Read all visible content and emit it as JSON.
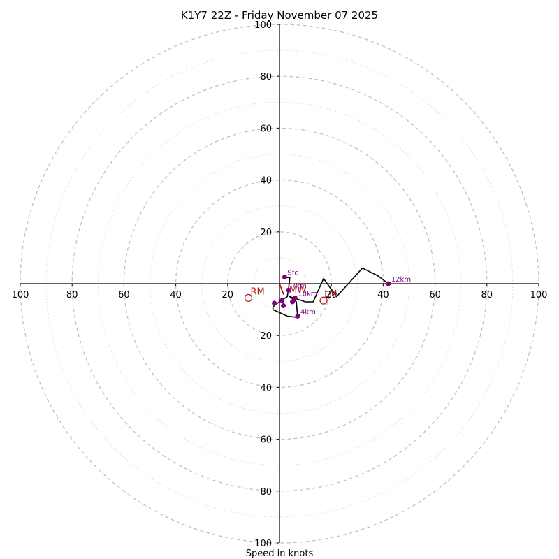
{
  "chart_data": {
    "type": "hodograph",
    "title": "K1Y7 22Z - Friday November 07 2025",
    "xlabel": "Speed in knots",
    "range": [
      -100,
      100
    ],
    "ring_major_step": 20,
    "ring_minor_step": 10,
    "x_ticks": [
      -100,
      -80,
      -60,
      -40,
      -20,
      20,
      40,
      60,
      80,
      100
    ],
    "x_tick_labels": [
      "100",
      "80",
      "60",
      "40",
      "20",
      "20",
      "40",
      "60",
      "80",
      "100"
    ],
    "y_ticks": [
      100,
      80,
      60,
      40,
      20,
      -20,
      -40,
      -60,
      -80,
      -100
    ],
    "y_tick_labels": [
      "100",
      "80",
      "60",
      "40",
      "20",
      "20",
      "40",
      "60",
      "80",
      "100"
    ],
    "hodograph_uv": [
      [
        2,
        2.5
      ],
      [
        4,
        2.3
      ],
      [
        3.5,
        -2
      ],
      [
        3,
        -5
      ],
      [
        0,
        -7
      ],
      [
        -1.5,
        -8
      ],
      [
        -2.5,
        -9
      ],
      [
        -2.5,
        -10
      ],
      [
        3,
        -12.5
      ],
      [
        7,
        -13
      ],
      [
        6.5,
        -7
      ],
      [
        4,
        -5
      ],
      [
        7,
        -6
      ],
      [
        10,
        -7
      ],
      [
        13,
        -7
      ],
      [
        17,
        2
      ],
      [
        22,
        -5
      ],
      [
        32,
        6
      ],
      [
        38,
        3
      ],
      [
        42,
        0
      ]
    ],
    "labeled_points": [
      {
        "u": 2,
        "v": 2.5,
        "label": "Sfc"
      },
      {
        "u": 7,
        "v": -12.5,
        "label": "4km"
      },
      {
        "u": 3.5,
        "v": -2.5,
        "label": "7km"
      },
      {
        "u": 6,
        "v": -5.5,
        "label": "10km"
      },
      {
        "u": 42,
        "v": 0,
        "label": "12km"
      }
    ],
    "unlabeled_points": [
      {
        "u": 1,
        "v": -6.5
      },
      {
        "u": -2,
        "v": -7.5
      },
      {
        "u": 1.5,
        "v": -8.5
      },
      {
        "u": 5,
        "v": -7
      }
    ],
    "motions": [
      {
        "label": "RM",
        "u": -12,
        "v": -5.5
      },
      {
        "label": "MW",
        "u": 3.5,
        "v": -5
      },
      {
        "label": "LM",
        "u": 17,
        "v": -6.5
      }
    ],
    "shear_vector": {
      "from": [
        0,
        0
      ],
      "to": [
        0,
        -1
      ]
    },
    "colors": {
      "trace": "#000000",
      "points": "#800080",
      "motion": "#b22222",
      "grid_major": "#bdbdbd",
      "grid_minor": "#d9d9d9"
    }
  }
}
